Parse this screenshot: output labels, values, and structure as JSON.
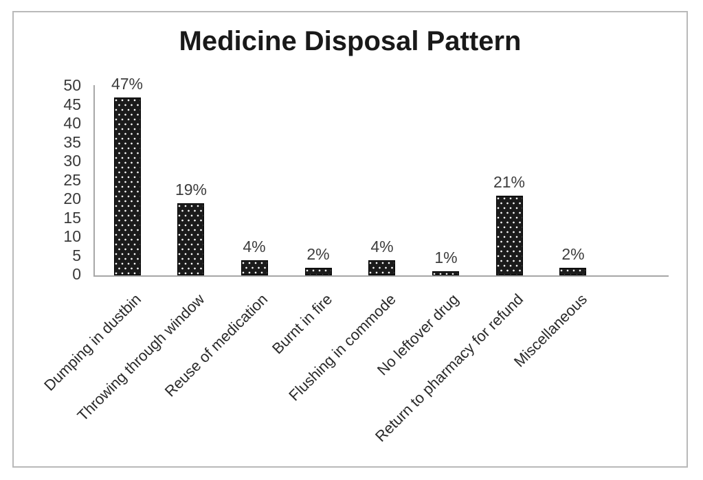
{
  "chart_data": {
    "type": "bar",
    "title": "Medicine Disposal Pattern",
    "categories": [
      "Dumping in dustbin",
      "Throwing through window",
      "Reuse of medication",
      "Burnt in fire",
      "Flushing in commode",
      "No leftover drug",
      "Return to pharmacy for refund",
      "Miscellaneous"
    ],
    "values": [
      47,
      19,
      4,
      2,
      4,
      1,
      21,
      2
    ],
    "value_labels": [
      "47%",
      "19%",
      "4%",
      "2%",
      "4%",
      "1%",
      "21%",
      "2%"
    ],
    "y_ticks": [
      0,
      5,
      10,
      15,
      20,
      25,
      30,
      35,
      40,
      45,
      50
    ],
    "ylim": [
      0,
      50
    ],
    "xlabel": "",
    "ylabel": "",
    "grid": false,
    "legend": false,
    "bar_fill_color": "#1b1b1b",
    "bar_pattern": "white-dots",
    "bar_dot_color": "#ffffff",
    "axis_color": "#a6a6a6",
    "tick_text_color": "#3a3a3a",
    "value_label_color": "#3d3d3d",
    "category_label_color": "#2a2a2a",
    "title_color": "#191919",
    "border_color": "#b9b9b9",
    "background_color": "#ffffff"
  }
}
